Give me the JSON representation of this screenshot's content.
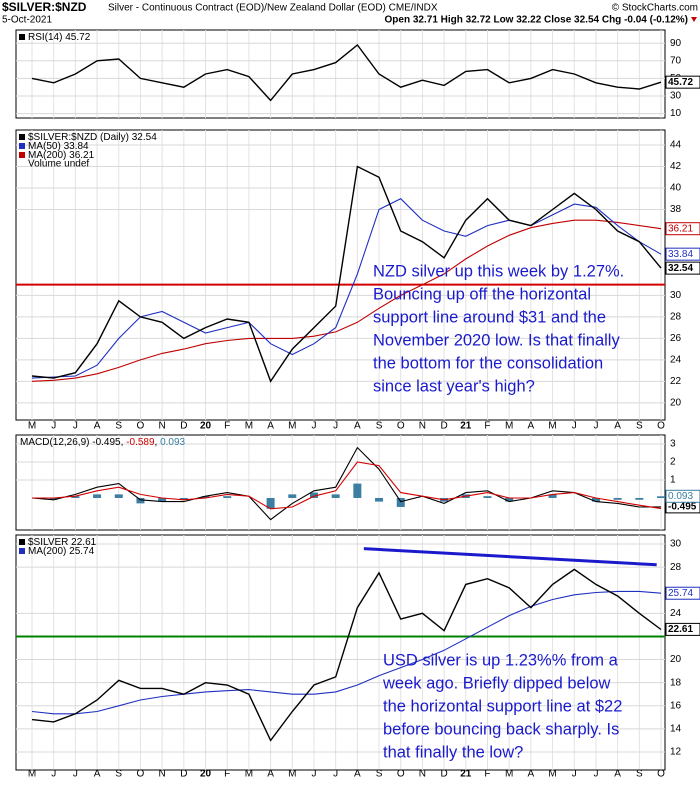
{
  "header": {
    "symbol": "$SILVER:$NZD",
    "description": "Silver - Continuous Contract (EOD)/New Zealand Dollar (EOD) CME/INDX",
    "copyright": "© StockCharts.com",
    "date": "5-Oct-2021",
    "quote": "Open 32.71 High 32.72 Low 32.22 Close 32.54 Chg -0.04 (-0.12%)"
  },
  "chart_data": [
    {
      "type": "line",
      "grid": true,
      "ylim": [
        5,
        105
      ],
      "yticks": [
        10,
        30,
        50,
        70,
        90
      ],
      "series": [
        {
          "name": "RSI(14)",
          "color": "#000000",
          "last": 45.72,
          "tag": true,
          "values": [
            50,
            45,
            55,
            70,
            72,
            50,
            45,
            40,
            55,
            60,
            52,
            25,
            55,
            60,
            68,
            88,
            55,
            40,
            48,
            42,
            58,
            60,
            45,
            50,
            60,
            55,
            45,
            40,
            38,
            45.72
          ]
        }
      ]
    },
    {
      "type": "line",
      "grid": true,
      "ylim": [
        18.4,
        45.4
      ],
      "yticks": [
        20,
        22,
        24,
        26,
        28,
        30,
        38,
        40,
        42,
        44
      ],
      "categories": [
        "M",
        "J",
        "J",
        "A",
        "S",
        "O",
        "N",
        "D",
        "20",
        "F",
        "M",
        "A",
        "M",
        "J",
        "J",
        "A",
        "S",
        "O",
        "N",
        "D",
        "21",
        "F",
        "M",
        "A",
        "M",
        "J",
        "J",
        "A",
        "S",
        "O"
      ],
      "legend_note": "Volume undef",
      "support": 31,
      "support_color": "#d40000",
      "series": [
        {
          "name": "$SILVER:$NZD (Daily)",
          "color": "#000000",
          "last": 32.54,
          "tag": true,
          "values": [
            22.5,
            22.3,
            22.8,
            25.5,
            29.5,
            28,
            27.5,
            26,
            27,
            27.8,
            27.5,
            22,
            25,
            27,
            29,
            42,
            41,
            36,
            35,
            33.5,
            37,
            39,
            37,
            36.5,
            38,
            39.5,
            38,
            36,
            35,
            32.54
          ]
        },
        {
          "name": "MA(50)",
          "color": "#1f2fc0",
          "last": 33.84,
          "tag": true,
          "values": [
            22.3,
            22.4,
            22.5,
            23.5,
            26,
            28,
            28.5,
            27.5,
            26.5,
            27,
            27.5,
            25.5,
            24.5,
            25.5,
            27,
            32,
            38,
            39,
            37,
            36,
            35.5,
            36.5,
            37,
            36.5,
            37.5,
            38.5,
            38.2,
            36.5,
            35,
            33.84
          ]
        },
        {
          "name": "MA(200)",
          "color": "#c00000",
          "last": 36.21,
          "tag": true,
          "values": [
            22,
            22.1,
            22.3,
            22.7,
            23.3,
            24,
            24.6,
            25,
            25.5,
            25.8,
            26,
            26,
            26,
            26.2,
            26.6,
            27.5,
            28.8,
            30,
            31,
            32,
            33.4,
            34.6,
            35.6,
            36.3,
            36.7,
            37,
            37,
            36.8,
            36.5,
            36.21
          ]
        }
      ],
      "annotation": [
        "NZD silver up this week by 1.27%.",
        "Bouncing up off the horizontal",
        "support line around $31 and the",
        "November 2020 low. Is that finally",
        "the bottom for the consolidation",
        "since last year's high?"
      ]
    },
    {
      "type": "macd",
      "grid": true,
      "ylim": [
        -1.78,
        3.5
      ],
      "yticks": [
        1,
        2,
        3
      ],
      "title": "MACD(12,26,9)",
      "series": [
        {
          "name": "MACD",
          "color": "#000000",
          "last": -0.495,
          "tag": true,
          "values": [
            0,
            -0.1,
            0.2,
            0.6,
            0.8,
            -0.1,
            -0.2,
            -0.2,
            0.1,
            0.3,
            0.1,
            -1.2,
            -0.3,
            0.4,
            0.6,
            2.8,
            1.6,
            -0.2,
            0.1,
            -0.3,
            0.3,
            0.4,
            -0.2,
            0,
            0.4,
            0.3,
            -0.2,
            -0.3,
            -0.5,
            -0.495
          ]
        },
        {
          "name": "Signal",
          "color": "#d40000",
          "last": -0.589,
          "values": [
            0,
            0,
            0.1,
            0.4,
            0.6,
            0.2,
            0,
            -0.1,
            0,
            0.2,
            0.1,
            -0.6,
            -0.5,
            0.1,
            0.4,
            2.0,
            1.8,
            0.3,
            0.1,
            -0.1,
            0.1,
            0.3,
            0,
            0,
            0.2,
            0.3,
            0,
            -0.2,
            -0.4,
            -0.589
          ]
        },
        {
          "name": "Histogram",
          "color": "#3b7ea1",
          "last": 0.093,
          "tag": true,
          "values": [
            0,
            -0.1,
            0.1,
            0.2,
            0.2,
            -0.3,
            -0.2,
            -0.1,
            0.1,
            0.1,
            0,
            -0.6,
            0.2,
            0.3,
            0.2,
            0.8,
            -0.2,
            -0.5,
            0,
            -0.2,
            0.2,
            0.1,
            -0.2,
            0,
            0.2,
            0,
            -0.2,
            -0.1,
            -0.1,
            0.093
          ]
        }
      ]
    },
    {
      "type": "line",
      "grid": true,
      "ylim": [
        10.44,
        30.78
      ],
      "yticks": [
        12,
        14,
        16,
        18,
        20,
        24,
        28,
        30
      ],
      "categories": [
        "M",
        "J",
        "J",
        "A",
        "S",
        "O",
        "N",
        "D",
        "20",
        "F",
        "M",
        "A",
        "M",
        "J",
        "J",
        "A",
        "S",
        "O",
        "N",
        "D",
        "21",
        "F",
        "M",
        "A",
        "M",
        "J",
        "J",
        "A",
        "S",
        "O"
      ],
      "support": 22,
      "support_color": "#008000",
      "trendline": {
        "values": [
          29.6,
          28.2
        ],
        "color": "#1a1acc"
      },
      "series": [
        {
          "name": "$SILVER",
          "color": "#000000",
          "last": 22.61,
          "tag": true,
          "values": [
            14.8,
            14.6,
            15.3,
            16.5,
            18.2,
            17.5,
            17.5,
            17,
            18,
            17.8,
            17,
            13,
            15.5,
            17.8,
            18.5,
            24.5,
            27.5,
            23.5,
            24,
            22.5,
            26.5,
            27,
            26.2,
            24.5,
            26.5,
            27.8,
            26.5,
            25.5,
            24,
            22.6
          ]
        },
        {
          "name": "MA(200)",
          "color": "#1f2fc0",
          "last": 25.74,
          "tag": true,
          "values": [
            15.5,
            15.3,
            15.3,
            15.5,
            16,
            16.5,
            16.8,
            17,
            17.2,
            17.3,
            17.4,
            17.2,
            17,
            17,
            17.2,
            17.8,
            18.6,
            19.3,
            20,
            20.8,
            21.8,
            22.8,
            23.8,
            24.6,
            25.2,
            25.6,
            25.8,
            25.9,
            25.9,
            25.74
          ]
        }
      ],
      "annotation": [
        "USD silver is up 1.23%% from a",
        "week ago. Briefly dipped below",
        "the horizontal support line at $22",
        "before bouncing back sharply. Is",
        "that finally the low?"
      ]
    }
  ]
}
